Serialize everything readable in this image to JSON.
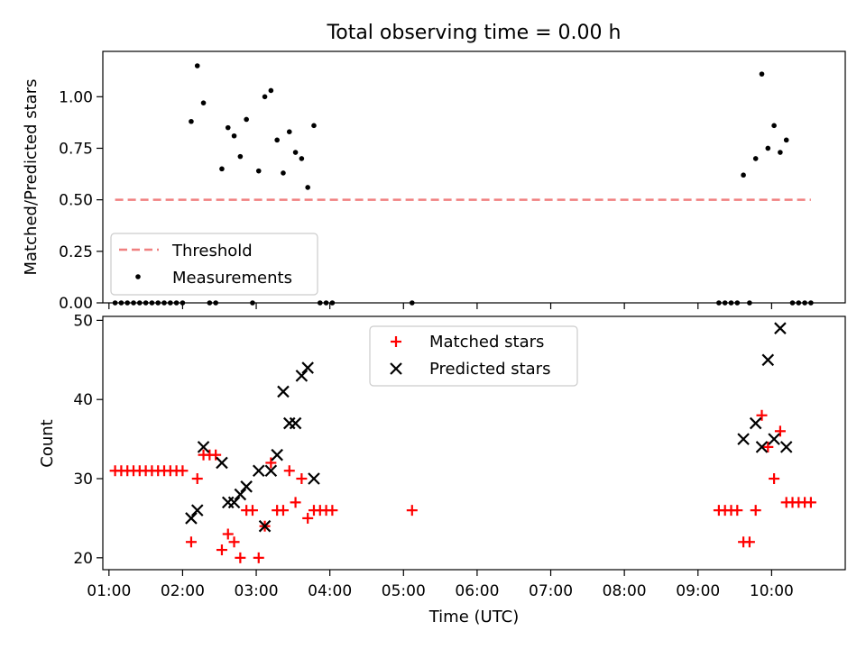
{
  "chart_data": [
    {
      "type": "scatter",
      "title": "Total observing time = 0.00 h",
      "xlabel": "",
      "ylabel": "Matched/Predicted stars",
      "xlim": [
        "00:55",
        "11:00"
      ],
      "ylim": [
        0,
        1.22
      ],
      "yticks": [
        0.0,
        0.25,
        0.5,
        0.75,
        1.0
      ],
      "ytick_labels": [
        "0.00",
        "0.25",
        "0.50",
        "0.75",
        "1.00"
      ],
      "legend_location": "lower-left",
      "threshold": {
        "name": "Threshold",
        "value": 0.5,
        "x_range": [
          "01:05",
          "10:32"
        ],
        "color": "#f08080",
        "style": "dashed"
      },
      "series": [
        {
          "name": "Measurements",
          "color": "#000000",
          "marker": "dot",
          "points": [
            [
              "01:05",
              0
            ],
            [
              "01:10",
              0
            ],
            [
              "01:15",
              0
            ],
            [
              "01:20",
              0
            ],
            [
              "01:25",
              0
            ],
            [
              "01:30",
              0
            ],
            [
              "01:35",
              0
            ],
            [
              "01:40",
              0
            ],
            [
              "01:45",
              0
            ],
            [
              "01:50",
              0
            ],
            [
              "01:55",
              0
            ],
            [
              "02:00",
              0
            ],
            [
              "02:07",
              0.88
            ],
            [
              "02:12",
              1.15
            ],
            [
              "02:17",
              0.97
            ],
            [
              "02:22",
              0
            ],
            [
              "02:27",
              0
            ],
            [
              "02:32",
              0.65
            ],
            [
              "02:37",
              0.85
            ],
            [
              "02:42",
              0.81
            ],
            [
              "02:47",
              0.71
            ],
            [
              "02:52",
              0.89
            ],
            [
              "02:57",
              0
            ],
            [
              "03:02",
              0.64
            ],
            [
              "03:07",
              1.0
            ],
            [
              "03:12",
              1.03
            ],
            [
              "03:17",
              0.79
            ],
            [
              "03:22",
              0.63
            ],
            [
              "03:27",
              0.83
            ],
            [
              "03:32",
              0.73
            ],
            [
              "03:37",
              0.7
            ],
            [
              "03:42",
              0.56
            ],
            [
              "03:47",
              0.86
            ],
            [
              "03:52",
              0
            ],
            [
              "03:57",
              0
            ],
            [
              "04:02",
              0
            ],
            [
              "05:07",
              0
            ],
            [
              "09:17",
              0
            ],
            [
              "09:22",
              0
            ],
            [
              "09:27",
              0
            ],
            [
              "09:32",
              0
            ],
            [
              "09:37",
              0.62
            ],
            [
              "09:42",
              0
            ],
            [
              "09:47",
              0.7
            ],
            [
              "09:52",
              1.11
            ],
            [
              "09:57",
              0.75
            ],
            [
              "10:02",
              0.86
            ],
            [
              "10:07",
              0.73
            ],
            [
              "10:12",
              0.79
            ],
            [
              "10:17",
              0
            ],
            [
              "10:22",
              0
            ],
            [
              "10:27",
              0
            ],
            [
              "10:32",
              0
            ]
          ]
        }
      ]
    },
    {
      "type": "scatter",
      "title": "",
      "xlabel": "Time (UTC)",
      "ylabel": "Count",
      "xlim": [
        "00:55",
        "11:00"
      ],
      "ylim": [
        18.5,
        50.5
      ],
      "yticks": [
        20,
        30,
        40,
        50
      ],
      "xticks": [
        "01:00",
        "02:00",
        "03:00",
        "04:00",
        "05:00",
        "06:00",
        "07:00",
        "08:00",
        "09:00",
        "10:00"
      ],
      "legend_location": "upper-center",
      "series": [
        {
          "name": "Matched stars",
          "color": "#ff0000",
          "marker": "plus",
          "points": [
            [
              "01:05",
              31
            ],
            [
              "01:10",
              31
            ],
            [
              "01:15",
              31
            ],
            [
              "01:20",
              31
            ],
            [
              "01:25",
              31
            ],
            [
              "01:30",
              31
            ],
            [
              "01:35",
              31
            ],
            [
              "01:40",
              31
            ],
            [
              "01:45",
              31
            ],
            [
              "01:50",
              31
            ],
            [
              "01:55",
              31
            ],
            [
              "02:00",
              31
            ],
            [
              "02:07",
              22
            ],
            [
              "02:12",
              30
            ],
            [
              "02:17",
              33
            ],
            [
              "02:22",
              33
            ],
            [
              "02:27",
              33
            ],
            [
              "02:32",
              21
            ],
            [
              "02:37",
              23
            ],
            [
              "02:42",
              22
            ],
            [
              "02:47",
              20
            ],
            [
              "02:52",
              26
            ],
            [
              "02:57",
              26
            ],
            [
              "03:02",
              20
            ],
            [
              "03:07",
              24
            ],
            [
              "03:12",
              32
            ],
            [
              "03:17",
              26
            ],
            [
              "03:22",
              26
            ],
            [
              "03:27",
              31
            ],
            [
              "03:32",
              27
            ],
            [
              "03:37",
              30
            ],
            [
              "03:42",
              25
            ],
            [
              "03:47",
              26
            ],
            [
              "03:52",
              26
            ],
            [
              "03:57",
              26
            ],
            [
              "04:02",
              26
            ],
            [
              "05:07",
              26
            ],
            [
              "09:17",
              26
            ],
            [
              "09:22",
              26
            ],
            [
              "09:27",
              26
            ],
            [
              "09:32",
              26
            ],
            [
              "09:37",
              22
            ],
            [
              "09:42",
              22
            ],
            [
              "09:47",
              26
            ],
            [
              "09:52",
              38
            ],
            [
              "09:57",
              34
            ],
            [
              "10:02",
              30
            ],
            [
              "10:07",
              36
            ],
            [
              "10:12",
              27
            ],
            [
              "10:17",
              27
            ],
            [
              "10:22",
              27
            ],
            [
              "10:27",
              27
            ],
            [
              "10:32",
              27
            ]
          ]
        },
        {
          "name": "Predicted stars",
          "color": "#000000",
          "marker": "x",
          "points": [
            [
              "02:07",
              25
            ],
            [
              "02:12",
              26
            ],
            [
              "02:17",
              34
            ],
            [
              "02:32",
              32
            ],
            [
              "02:37",
              27
            ],
            [
              "02:42",
              27
            ],
            [
              "02:47",
              28
            ],
            [
              "02:52",
              29
            ],
            [
              "03:02",
              31
            ],
            [
              "03:07",
              24
            ],
            [
              "03:12",
              31
            ],
            [
              "03:17",
              33
            ],
            [
              "03:22",
              41
            ],
            [
              "03:27",
              37
            ],
            [
              "03:32",
              37
            ],
            [
              "03:37",
              43
            ],
            [
              "03:42",
              44
            ],
            [
              "03:47",
              30
            ],
            [
              "09:37",
              35
            ],
            [
              "09:47",
              37
            ],
            [
              "09:52",
              34
            ],
            [
              "09:57",
              45
            ],
            [
              "10:02",
              35
            ],
            [
              "10:07",
              49
            ],
            [
              "10:12",
              34
            ]
          ]
        }
      ]
    }
  ]
}
